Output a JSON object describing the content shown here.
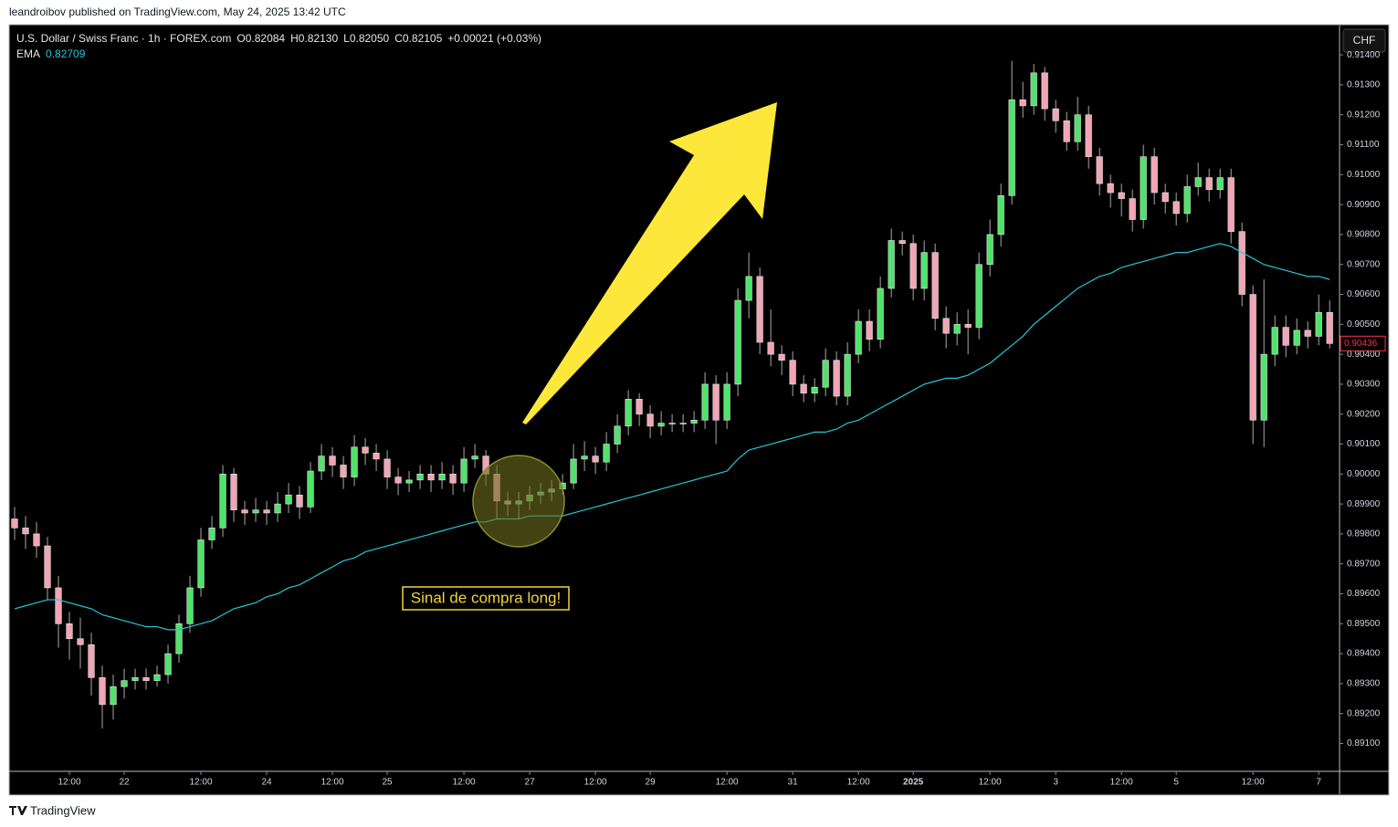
{
  "publisher_line": "leandroibov published on TradingView.com, May 24, 2025 13:42 UTC",
  "footer": "TradingView",
  "chart_data": {
    "type": "candlestick",
    "title": "U.S. Dollar / Swiss Franc · 1h · FOREX.com",
    "header_values": [
      "O0.82084",
      "H0.82130",
      "L0.82050",
      "C0.82105",
      "+0.00021 (+0.03%)"
    ],
    "currency": "CHF",
    "annotation": "Sinal de compra long!",
    "up_color": "#4fe36a",
    "down_color": "#f2a5b5",
    "wick_color": "#a9a9a9",
    "last_price": 0.90436,
    "last_price_color": "#f23645",
    "xlim": [
      -0.5,
      120.9
    ],
    "ylim": [
      0.89007,
      0.91498
    ],
    "open": [
      0.8985,
      0.8982,
      0.898,
      0.8976,
      0.8962,
      0.895,
      0.8945,
      0.8943,
      0.8932,
      0.8923,
      0.8929,
      0.8931,
      0.8932,
      0.8931,
      0.8933,
      0.894,
      0.895,
      0.8962,
      0.8978,
      0.8982,
      0.9,
      0.8988,
      0.8987,
      0.8988,
      0.8987,
      0.899,
      0.8993,
      0.8989,
      0.9001,
      0.9006,
      0.9003,
      0.8999,
      0.9009,
      0.9007,
      0.9005,
      0.8999,
      0.8997,
      0.8998,
      0.9,
      0.8998,
      0.9,
      0.8997,
      0.9005,
      0.9006,
      0.9,
      0.8991,
      0.899,
      0.8991,
      0.8993,
      0.8994,
      0.8995,
      0.8997,
      0.9005,
      0.9006,
      0.9004,
      0.901,
      0.9016,
      0.9025,
      0.902,
      0.9016,
      0.9017,
      0.9017,
      0.9017,
      0.9018,
      0.903,
      0.9018,
      0.903,
      0.9058,
      0.9066,
      0.9044,
      0.904,
      0.9038,
      0.903,
      0.9027,
      0.9029,
      0.9038,
      0.9026,
      0.904,
      0.9051,
      0.9045,
      0.9062,
      0.9078,
      0.9077,
      0.9062,
      0.9074,
      0.9052,
      0.9047,
      0.905,
      0.9049,
      0.907,
      0.908,
      0.9093,
      0.9125,
      0.9123,
      0.9134,
      0.9122,
      0.9118,
      0.9111,
      0.912,
      0.9106,
      0.9097,
      0.9094,
      0.9092,
      0.9085,
      0.9106,
      0.9094,
      0.9091,
      0.9087,
      0.9096,
      0.9099,
      0.9095,
      0.9099,
      0.9081,
      0.906,
      0.9018,
      0.904,
      0.9049,
      0.9043,
      0.9048,
      0.9046,
      0.9054
    ],
    "high": [
      0.8989,
      0.8986,
      0.8984,
      0.8979,
      0.8966,
      0.8954,
      0.8952,
      0.8947,
      0.8936,
      0.8933,
      0.8935,
      0.8935,
      0.8935,
      0.8936,
      0.8943,
      0.8953,
      0.8966,
      0.8982,
      0.8986,
      0.9003,
      0.9002,
      0.8991,
      0.8992,
      0.8991,
      0.8994,
      0.8997,
      0.8996,
      0.9004,
      0.901,
      0.9009,
      0.9006,
      0.9013,
      0.9012,
      0.901,
      0.9008,
      0.9002,
      0.9001,
      0.9003,
      0.9003,
      0.9004,
      0.9003,
      0.9009,
      0.901,
      0.9008,
      0.9003,
      0.8994,
      0.8994,
      0.8996,
      0.8997,
      0.8998,
      0.9,
      0.901,
      0.9011,
      0.9009,
      0.9014,
      0.902,
      0.9028,
      0.9027,
      0.9023,
      0.9021,
      0.902,
      0.902,
      0.9021,
      0.9034,
      0.9033,
      0.9034,
      0.9062,
      0.9074,
      0.9069,
      0.9055,
      0.9043,
      0.9041,
      0.9033,
      0.9032,
      0.9042,
      0.9041,
      0.9044,
      0.9055,
      0.9055,
      0.9066,
      0.9082,
      0.9081,
      0.908,
      0.9078,
      0.9077,
      0.9056,
      0.9054,
      0.9055,
      0.9074,
      0.9085,
      0.9097,
      0.9138,
      0.9131,
      0.9137,
      0.9136,
      0.9125,
      0.9121,
      0.9126,
      0.9123,
      0.9109,
      0.91,
      0.9097,
      0.9095,
      0.911,
      0.9109,
      0.9097,
      0.9094,
      0.91,
      0.9104,
      0.9102,
      0.9102,
      0.9102,
      0.9084,
      0.9063,
      0.9065,
      0.9053,
      0.9053,
      0.9052,
      0.9051,
      0.906,
      0.9058
    ],
    "low": [
      0.8978,
      0.8975,
      0.8972,
      0.8958,
      0.8942,
      0.8938,
      0.8935,
      0.8926,
      0.8915,
      0.8918,
      0.8925,
      0.8928,
      0.8928,
      0.8929,
      0.893,
      0.8937,
      0.8947,
      0.8959,
      0.8975,
      0.8979,
      0.8984,
      0.8983,
      0.8984,
      0.8983,
      0.8984,
      0.8987,
      0.8985,
      0.8987,
      0.8998,
      0.8999,
      0.8995,
      0.8996,
      0.9003,
      0.9001,
      0.8995,
      0.8993,
      0.8994,
      0.8995,
      0.8994,
      0.8995,
      0.8993,
      0.8994,
      0.9002,
      0.8996,
      0.8985,
      0.8986,
      0.8985,
      0.8988,
      0.899,
      0.8991,
      0.8993,
      0.8995,
      0.9001,
      0.9,
      0.9001,
      0.9007,
      0.9013,
      0.9016,
      0.9012,
      0.9013,
      0.9014,
      0.9014,
      0.9014,
      0.9015,
      0.901,
      0.9015,
      0.9026,
      0.9052,
      0.904,
      0.9036,
      0.9033,
      0.9026,
      0.9024,
      0.9024,
      0.9026,
      0.9023,
      0.9023,
      0.9037,
      0.9041,
      0.9042,
      0.9059,
      0.9073,
      0.9058,
      0.9058,
      0.9048,
      0.9042,
      0.9043,
      0.904,
      0.9045,
      0.9066,
      0.9076,
      0.909,
      0.9119,
      0.912,
      0.9118,
      0.9114,
      0.9108,
      0.9108,
      0.9102,
      0.9093,
      0.9089,
      0.9086,
      0.9081,
      0.9082,
      0.909,
      0.9087,
      0.9083,
      0.9084,
      0.9093,
      0.9091,
      0.9092,
      0.9077,
      0.9056,
      0.901,
      0.9009,
      0.9036,
      0.9039,
      0.904,
      0.9042,
      0.9043,
      0.9042
    ],
    "close": [
      0.8982,
      0.898,
      0.8976,
      0.8962,
      0.895,
      0.8945,
      0.8943,
      0.8932,
      0.8923,
      0.8929,
      0.8931,
      0.8932,
      0.8931,
      0.8933,
      0.894,
      0.895,
      0.8962,
      0.8978,
      0.8982,
      0.9,
      0.8988,
      0.8987,
      0.8988,
      0.8987,
      0.899,
      0.8993,
      0.8989,
      0.9001,
      0.9006,
      0.9003,
      0.8999,
      0.9009,
      0.9007,
      0.9005,
      0.8999,
      0.8997,
      0.8998,
      0.9,
      0.8998,
      0.9,
      0.8997,
      0.9005,
      0.9006,
      0.9,
      0.8991,
      0.899,
      0.8991,
      0.8993,
      0.8994,
      0.8995,
      0.8997,
      0.9005,
      0.9006,
      0.9004,
      0.901,
      0.9016,
      0.9025,
      0.902,
      0.9016,
      0.9017,
      0.9017,
      0.9017,
      0.9018,
      0.903,
      0.9018,
      0.903,
      0.9058,
      0.9066,
      0.9044,
      0.904,
      0.9038,
      0.903,
      0.9027,
      0.9029,
      0.9038,
      0.9026,
      0.904,
      0.9051,
      0.9045,
      0.9062,
      0.9078,
      0.9077,
      0.9062,
      0.9074,
      0.9052,
      0.9047,
      0.905,
      0.9049,
      0.907,
      0.908,
      0.9093,
      0.9125,
      0.9123,
      0.9134,
      0.9122,
      0.9118,
      0.9111,
      0.912,
      0.9106,
      0.9097,
      0.9094,
      0.9092,
      0.9085,
      0.9106,
      0.9094,
      0.9091,
      0.9087,
      0.9096,
      0.9099,
      0.9095,
      0.9099,
      0.9081,
      0.906,
      0.9018,
      0.904,
      0.9049,
      0.9043,
      0.9048,
      0.9046,
      0.9054,
      0.90436
    ],
    "ema": {
      "name": "EMA",
      "label_value": 0.82709,
      "color": "#26c6da",
      "values": [
        0.8955,
        0.8956,
        0.8957,
        0.8958,
        0.8958,
        0.8957,
        0.8956,
        0.8955,
        0.8953,
        0.8952,
        0.8951,
        0.895,
        0.8949,
        0.8949,
        0.8948,
        0.8948,
        0.8949,
        0.895,
        0.8951,
        0.8953,
        0.8955,
        0.8956,
        0.8957,
        0.8959,
        0.896,
        0.8962,
        0.8963,
        0.8965,
        0.8967,
        0.8969,
        0.8971,
        0.8972,
        0.8974,
        0.8975,
        0.8976,
        0.8977,
        0.8978,
        0.8979,
        0.898,
        0.8981,
        0.8982,
        0.8983,
        0.8984,
        0.8984,
        0.8985,
        0.8985,
        0.8985,
        0.8986,
        0.8986,
        0.8986,
        0.8986,
        0.8987,
        0.8988,
        0.8989,
        0.899,
        0.8991,
        0.8992,
        0.8993,
        0.8994,
        0.8995,
        0.8996,
        0.8997,
        0.8998,
        0.8999,
        0.9,
        0.9001,
        0.9005,
        0.9008,
        0.9009,
        0.901,
        0.9011,
        0.9012,
        0.9013,
        0.9014,
        0.9014,
        0.9015,
        0.9017,
        0.9018,
        0.902,
        0.9022,
        0.9024,
        0.9026,
        0.9028,
        0.903,
        0.9031,
        0.9032,
        0.9032,
        0.9033,
        0.9035,
        0.9037,
        0.904,
        0.9043,
        0.9046,
        0.905,
        0.9053,
        0.9056,
        0.9059,
        0.9062,
        0.9064,
        0.9066,
        0.9067,
        0.9069,
        0.907,
        0.9071,
        0.9072,
        0.9073,
        0.9074,
        0.9074,
        0.9075,
        0.9076,
        0.9077,
        0.9076,
        0.9074,
        0.9072,
        0.907,
        0.9069,
        0.9068,
        0.9067,
        0.9066,
        0.9066,
        0.9065
      ]
    },
    "yticks": [
      {
        "value": 0.914,
        "label": "0.91400"
      },
      {
        "value": 0.913,
        "label": "0.91300"
      },
      {
        "value": 0.912,
        "label": "0.91200"
      },
      {
        "value": 0.911,
        "label": "0.91100"
      },
      {
        "value": 0.91,
        "label": "0.91000"
      },
      {
        "value": 0.909,
        "label": "0.90900"
      },
      {
        "value": 0.908,
        "label": "0.90800"
      },
      {
        "value": 0.907,
        "label": "0.90700"
      },
      {
        "value": 0.906,
        "label": "0.90600"
      },
      {
        "value": 0.905,
        "label": "0.90500"
      },
      {
        "value": 0.904,
        "label": "0.90400"
      },
      {
        "value": 0.903,
        "label": "0.90300"
      },
      {
        "value": 0.902,
        "label": "0.90200"
      },
      {
        "value": 0.901,
        "label": "0.90100"
      },
      {
        "value": 0.9,
        "label": "0.90000"
      },
      {
        "value": 0.899,
        "label": "0.89900"
      },
      {
        "value": 0.898,
        "label": "0.89800"
      },
      {
        "value": 0.897,
        "label": "0.89700"
      },
      {
        "value": 0.896,
        "label": "0.89600"
      },
      {
        "value": 0.895,
        "label": "0.89500"
      },
      {
        "value": 0.894,
        "label": "0.89400"
      },
      {
        "value": 0.893,
        "label": "0.89300"
      },
      {
        "value": 0.892,
        "label": "0.89200"
      },
      {
        "value": 0.891,
        "label": "0.89100"
      }
    ],
    "xticks": [
      {
        "value": 5,
        "label": "12:00"
      },
      {
        "value": 10,
        "label": "22"
      },
      {
        "value": 17,
        "label": "12:00"
      },
      {
        "value": 23,
        "label": "24"
      },
      {
        "value": 29,
        "label": "12:00"
      },
      {
        "value": 34,
        "label": "25"
      },
      {
        "value": 41,
        "label": "12:00"
      },
      {
        "value": 47,
        "label": "27"
      },
      {
        "value": 53,
        "label": "12:00"
      },
      {
        "value": 58,
        "label": "29"
      },
      {
        "value": 65,
        "label": "12:00"
      },
      {
        "value": 71,
        "label": "31"
      },
      {
        "value": 77,
        "label": "12:00"
      },
      {
        "value": 82,
        "label": "2025",
        "bold": true
      },
      {
        "value": 89,
        "label": "12:00"
      },
      {
        "value": 95,
        "label": "3"
      },
      {
        "value": 101,
        "label": "12:00"
      },
      {
        "value": 106,
        "label": "5"
      },
      {
        "value": 113,
        "label": "12:00"
      },
      {
        "value": 119,
        "label": "7"
      }
    ]
  }
}
